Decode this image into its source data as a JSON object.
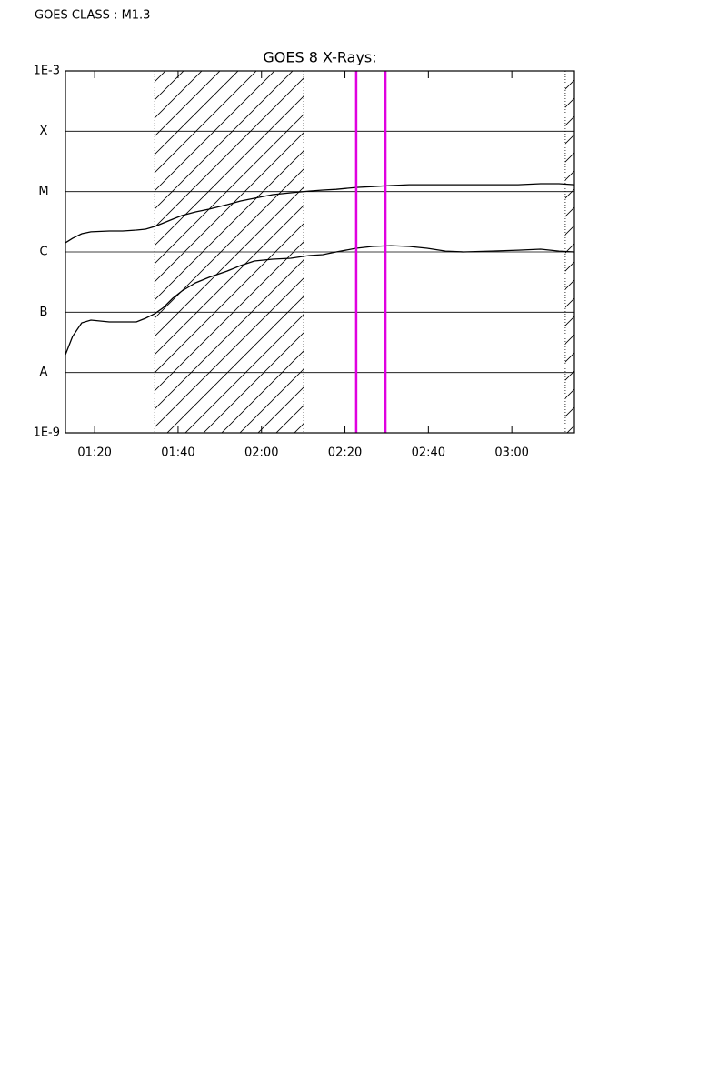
{
  "header": "GOES CLASS : M1.3",
  "chart_data": {
    "type": "line",
    "title": "GOES 8 X-Rays:",
    "x": [
      73.0,
      74.7,
      76.9,
      79.1,
      83.5,
      86.7,
      90.0,
      92.2,
      94.4,
      96.5,
      98.7,
      100.9,
      104.2,
      107.4,
      111.8,
      115.0,
      118.3,
      122.7,
      127.0,
      131.4,
      134.7,
      137.9,
      142.7,
      146.6,
      151.0,
      155.4,
      159.7,
      164.1,
      168.4,
      175.0,
      181.5,
      186.9,
      191.3,
      195.0
    ],
    "series": [
      {
        "color": "#000000",
        "values": [
          1.42e-06,
          1.68e-06,
          2e-06,
          2.15e-06,
          2.22e-06,
          2.22e-06,
          2.3e-06,
          2.38e-06,
          2.64e-06,
          3.03e-06,
          3.49e-06,
          4.01e-06,
          4.61e-06,
          5.11e-06,
          6.08e-06,
          6.99e-06,
          7.76e-06,
          8.92e-06,
          9.55e-06,
          1.02e-05,
          1.06e-05,
          1.09e-05,
          1.17e-05,
          1.21e-05,
          1.26e-05,
          1.3e-05,
          1.3e-05,
          1.3e-05,
          1.3e-05,
          1.3e-05,
          1.3e-05,
          1.35e-05,
          1.35e-05,
          1.3e-05
        ]
      },
      {
        "color": "#000000",
        "values": [
          1.98e-08,
          3.96e-08,
          6.67e-08,
          7.4e-08,
          6.9e-08,
          6.9e-08,
          6.9e-08,
          7.93e-08,
          9.43e-08,
          1.2e-07,
          1.7e-07,
          2.25e-07,
          3.07e-07,
          3.78e-07,
          4.82e-07,
          5.94e-07,
          7.07e-07,
          7.57e-07,
          7.84e-07,
          8.71e-07,
          9.01e-07,
          1e-06,
          1.15e-06,
          1.23e-06,
          1.27e-06,
          1.23e-06,
          1.15e-06,
          1.03e-06,
          1e-06,
          1.03e-06,
          1.07e-06,
          1.11e-06,
          1.03e-06,
          1e-06
        ]
      }
    ],
    "xlim": [
      73,
      195
    ],
    "xticks": [
      {
        "value": 80,
        "label": "01:20"
      },
      {
        "value": 100,
        "label": "01:40"
      },
      {
        "value": 120,
        "label": "02:00"
      },
      {
        "value": 140,
        "label": "02:20"
      },
      {
        "value": 160,
        "label": "02:40"
      },
      {
        "value": 180,
        "label": "03:00"
      }
    ],
    "ylim": [
      1e-09,
      0.001
    ],
    "log_y": true,
    "yticks": [
      {
        "value": 0.001,
        "label": "1E-3"
      },
      {
        "value": 0.0001,
        "label": "X"
      },
      {
        "value": 1e-05,
        "label": "M"
      },
      {
        "value": 1e-06,
        "label": "C"
      },
      {
        "value": 1e-07,
        "label": "B"
      },
      {
        "value": 1e-08,
        "label": "A"
      },
      {
        "value": 1e-09,
        "label": "1E-9"
      }
    ],
    "grid": true,
    "shaded_intervals": [
      [
        94.4,
        130.1
      ],
      [
        192.8,
        195
      ]
    ],
    "markers": {
      "color": "#e000e0",
      "x": [
        142.7,
        149.7
      ]
    }
  }
}
